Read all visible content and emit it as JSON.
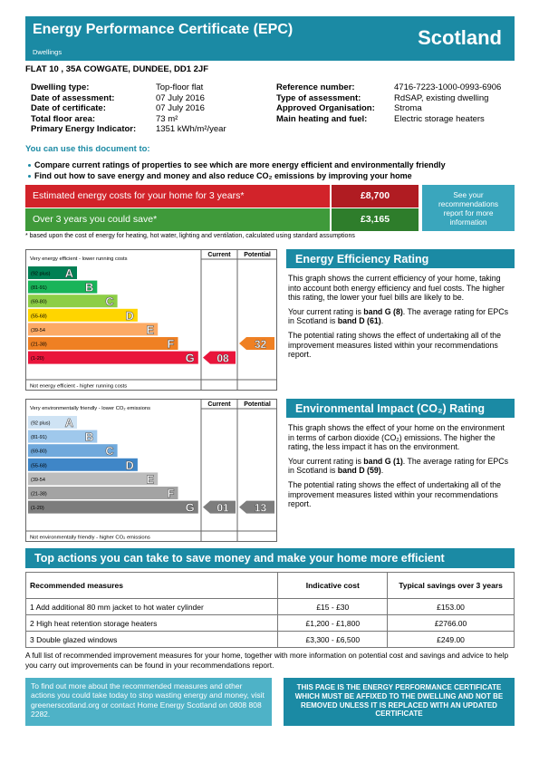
{
  "header": {
    "title": "Energy Performance Certificate (EPC)",
    "subtitle": "Dwellings",
    "country": "Scotland"
  },
  "address": "FLAT 10 , 35A COWGATE, DUNDEE, DD1 2JF",
  "details": {
    "left": [
      [
        "Dwelling type:",
        "Top-floor flat"
      ],
      [
        "Date of assessment:",
        "07 July 2016"
      ],
      [
        "Date of certificate:",
        "07 July 2016"
      ],
      [
        "Total floor area:",
        "73 m²"
      ],
      [
        "Primary Energy Indicator:",
        "1351 kWh/m²/year"
      ]
    ],
    "right": [
      [
        "Reference number:",
        "4716-7223-1000-0993-6906"
      ],
      [
        "Type of assessment:",
        "RdSAP, existing dwelling"
      ],
      [
        "Approved Organisation:",
        "Stroma"
      ],
      [
        "Main heating and fuel:",
        "Electric storage heaters"
      ]
    ]
  },
  "uses": {
    "heading": "You can use this document to:",
    "bullets": [
      "Compare current ratings of properties to see which are more energy efficient and environmentally friendly",
      "Find out how to save energy and money and also reduce CO₂ emissions by improving your home"
    ]
  },
  "costs": {
    "rows": [
      [
        "Estimated energy costs for your home for 3 years*",
        "£8,700"
      ],
      [
        "Over 3 years you could save*",
        "£3,165"
      ]
    ],
    "note": "See your recommendations report for more information",
    "footnote": "* based upon the cost of energy for heating, hot water, lighting and ventilation, calculated using standard assumptions"
  },
  "ee_chart": {
    "col_current": "Current",
    "col_potential": "Potential",
    "top": "Very energy efficient - lower running costs",
    "bottom": "Not energy efficient - higher running costs",
    "bands": [
      [
        "(92 plus)",
        "A"
      ],
      [
        "(81-91)",
        "B"
      ],
      [
        "(69-80)",
        "C"
      ],
      [
        "(55-68)",
        "D"
      ],
      [
        "(39-54",
        "E"
      ],
      [
        "(21-38)",
        "F"
      ],
      [
        "(1-20)",
        "G"
      ]
    ],
    "colors": [
      "#008054",
      "#19b459",
      "#8dce46",
      "#ffd500",
      "#fcaa65",
      "#ef8023",
      "#e9153b"
    ],
    "current": "08",
    "potential": "32"
  },
  "ee_text": {
    "heading": "Energy Efficiency Rating",
    "paragraphs": [
      [
        "This graph shows the current efficiency of your home, taking into account both energy efficiency and fuel costs. The higher this rating, the lower your fuel bills are likely to be."
      ],
      [
        "Your current rating is ",
        "band G (8)",
        ". The average rating for EPCs in Scotland is ",
        "band D (61)",
        "."
      ],
      [
        "The potential rating shows the effect of undertaking all of the improvement measures listed within your recommendations report."
      ]
    ]
  },
  "ei_chart": {
    "col_current": "Current",
    "col_potential": "Potential",
    "top": "Very environmentally friendly - lower CO₂ emissions",
    "bottom": "Not environmentally friendly - higher CO₂ emissions",
    "bands": [
      [
        "(92 plus)",
        "A"
      ],
      [
        "(81-91)",
        "B"
      ],
      [
        "(69-80)",
        "C"
      ],
      [
        "(55-68)",
        "D"
      ],
      [
        "(39-54",
        "E"
      ],
      [
        "(21-38)",
        "F"
      ],
      [
        "(1-20)",
        "G"
      ]
    ],
    "colors": [
      "#cfe3f4",
      "#9fc8ec",
      "#70a9dc",
      "#3f86c7",
      "#bdbdbd",
      "#a3a3a3",
      "#7d7d7d"
    ],
    "current": "01",
    "potential": "13"
  },
  "ei_text": {
    "heading": "Environmental Impact (CO₂) Rating",
    "paragraphs": [
      [
        "This graph shows the effect of your home on the environment in terms of carbon dioxide (CO₂) emissions. The higher the rating, the less impact it has on the environment."
      ],
      [
        "Your current rating is ",
        "band G (1)",
        ". The average rating for EPCs in Scotland is ",
        "band D (59)",
        "."
      ],
      [
        "The potential rating shows the effect of undertaking all of the improvement measures listed within your recommendations report."
      ]
    ]
  },
  "actions": {
    "heading": "Top actions you can take to save money and make your home more efficient",
    "columns": [
      "Recommended measures",
      "Indicative cost",
      "Typical savings over 3 years"
    ],
    "rows": [
      [
        "1 Add additional 80 mm jacket to hot water cylinder",
        "£15 - £30",
        "£153.00"
      ],
      [
        "2 High heat retention storage heaters",
        "£1,200 - £1,800",
        "£2766.00"
      ],
      [
        "3 Double glazed windows",
        "£3,300 - £6,500",
        "£249.00"
      ]
    ]
  },
  "footer": {
    "text": "A full list of recommended improvement measures for your home, together with more information on potential cost and savings and advice to help you carry out improvements can be found in your recommendations report.",
    "info_box": "To find out more about the recommended measures and other actions you could take today to stop wasting energy and money, visit greenerscotland.org or contact Home Energy Scotland on 0808 808 2282.",
    "notice_box": "THIS PAGE IS THE ENERGY PERFORMANCE CERTIFICATE WHICH MUST BE AFFIXED TO THE DWELLING AND NOT BE REMOVED UNLESS IT IS REPLACED WITH AN UPDATED CERTIFICATE"
  }
}
